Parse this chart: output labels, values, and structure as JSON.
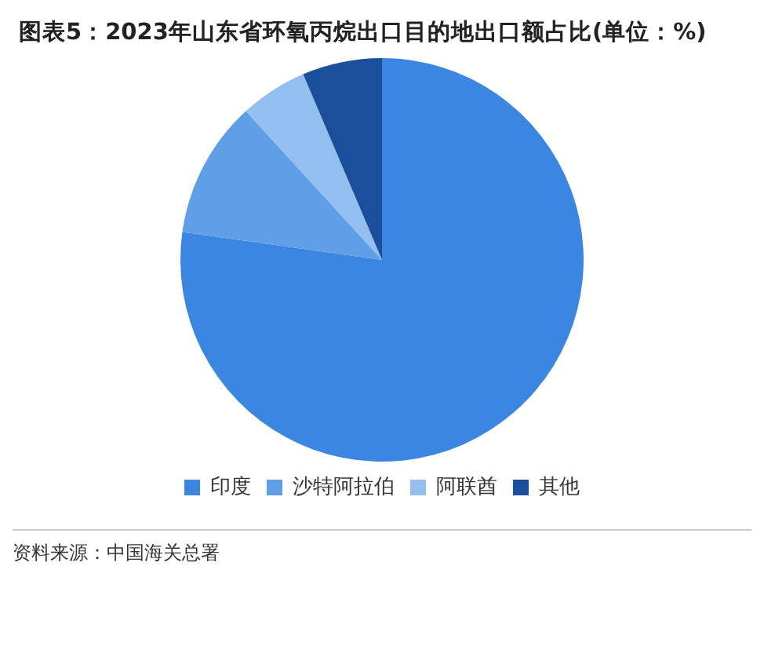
{
  "chart_data": {
    "type": "pie",
    "title": "图表5：2023年山东省环氧丙烷出口目的地出口额占比(单位：%)",
    "categories": [
      "印度",
      "沙特阿拉伯",
      "阿联酋",
      "其他"
    ],
    "values": [
      77.2,
      11.0,
      5.4,
      6.4
    ],
    "colors": [
      "#3b86e0",
      "#5f9fe8",
      "#93bff0",
      "#1a4f9c"
    ],
    "legend": "bottom",
    "annotations": [
      "资料来源：中国海关总署"
    ]
  }
}
